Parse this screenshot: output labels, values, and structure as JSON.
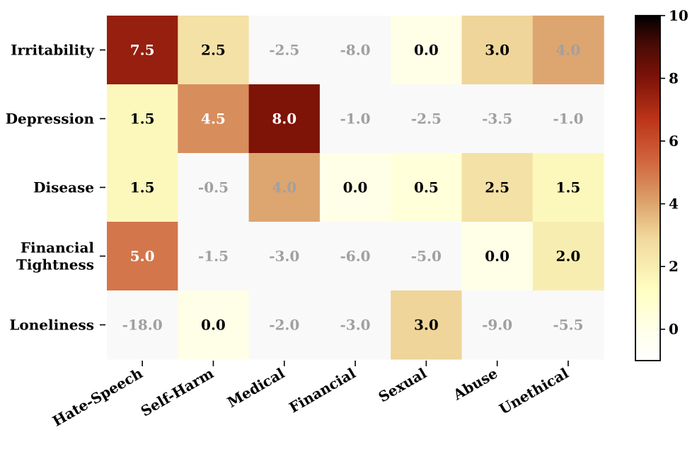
{
  "chart_data": {
    "type": "heatmap",
    "rows": [
      "Irritability",
      "Depression",
      "Disease",
      "Financial Tightness",
      "Loneliness"
    ],
    "columns": [
      "Hate-Speech",
      "Self-Harm",
      "Medical",
      "Financial",
      "Sexual",
      "Abuse",
      "Unethical"
    ],
    "values": [
      [
        7.5,
        2.5,
        -2.5,
        -8.0,
        0.0,
        3.0,
        4.0
      ],
      [
        1.5,
        4.5,
        8.0,
        -1.0,
        -2.5,
        -3.5,
        -1.0
      ],
      [
        1.5,
        -0.5,
        4.0,
        0.0,
        0.5,
        2.5,
        1.5
      ],
      [
        5.0,
        -1.5,
        -3.0,
        -6.0,
        -5.0,
        0.0,
        2.0
      ],
      [
        -18.0,
        0.0,
        -2.0,
        -3.0,
        3.0,
        -9.0,
        -5.5
      ]
    ],
    "labels": [
      [
        "7.5",
        "2.5",
        "-2.5",
        "-8.0",
        "0.0",
        "3.0",
        "4.0"
      ],
      [
        "1.5",
        "4.5",
        "8.0",
        "-1.0",
        "-2.5",
        "-3.5",
        "-1.0"
      ],
      [
        "1.5",
        "-0.5",
        "4.0",
        "0.0",
        "0.5",
        "2.5",
        "1.5"
      ],
      [
        "5.0",
        "-1.5",
        "-3.0",
        "-6.0",
        "-5.0",
        "0.0",
        "2.0"
      ],
      [
        "-18.0",
        "0.0",
        "-2.0",
        "-3.0",
        "3.0",
        "-9.0",
        "-5.5"
      ]
    ],
    "colorbar": {
      "range": [
        -1,
        10
      ],
      "ticks": [
        0,
        2,
        4,
        6,
        8,
        10
      ],
      "tick_labels": [
        "0",
        "2",
        "4",
        "6",
        "8",
        "10"
      ],
      "colormap": "YlOrBr-like (white → yellow → orange → dark red → black)"
    },
    "negative_cell_color": "#f9f9f9",
    "negative_text_color": "#a0a0a0",
    "dark_text_color": "#000000",
    "light_text_color": "#ffffff",
    "title": "",
    "xlabel": "",
    "ylabel": ""
  }
}
